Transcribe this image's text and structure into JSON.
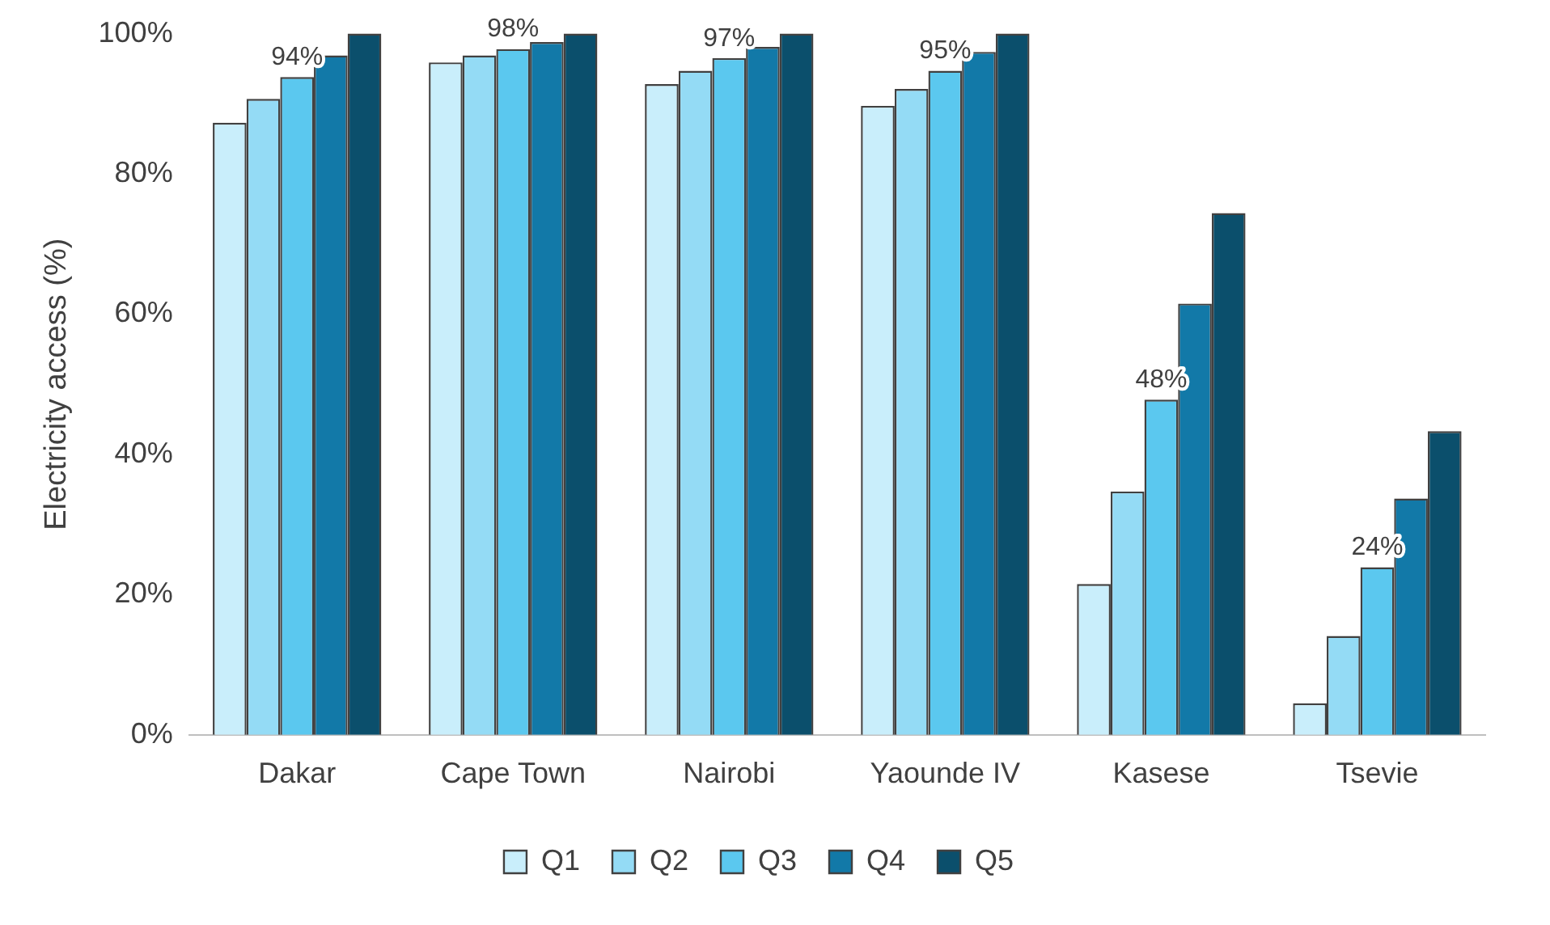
{
  "chart_data": {
    "type": "bar",
    "ylabel": "Electricity access (%)",
    "categories": [
      "Dakar",
      "Cape Town",
      "Nairobi",
      "Yaounde IV",
      "Kasese",
      "Tsevie"
    ],
    "series": [
      {
        "name": "Q1",
        "color": "#c9eefb",
        "values": [
          87.3,
          95.9,
          92.8,
          89.7,
          21.5,
          4.5
        ]
      },
      {
        "name": "Q2",
        "color": "#94dbf5",
        "values": [
          90.7,
          96.9,
          94.7,
          92.1,
          34.7,
          14.1
        ]
      },
      {
        "name": "Q3",
        "color": "#5bc8ef",
        "values": [
          93.8,
          97.8,
          96.5,
          94.7,
          47.8,
          23.9
        ],
        "value_labels": [
          "94%",
          "98%",
          "97%",
          "95%",
          "48%",
          "24%"
        ]
      },
      {
        "name": "Q4",
        "color": "#1279a8",
        "values": [
          96.9,
          98.8,
          98.1,
          97.4,
          61.5,
          33.7
        ]
      },
      {
        "name": "Q5",
        "color": "#0b4f6c",
        "values": [
          100,
          100,
          100,
          100,
          74.4,
          43.3
        ]
      }
    ],
    "ylim": [
      0,
      100
    ],
    "yticks": [
      {
        "value": 0,
        "label": "0%"
      },
      {
        "value": 20,
        "label": "20%"
      },
      {
        "value": 40,
        "label": "40%"
      },
      {
        "value": 60,
        "label": "60%"
      },
      {
        "value": 80,
        "label": "80%"
      },
      {
        "value": 100,
        "label": "100%"
      }
    ],
    "grid": false,
    "legend": "bottom"
  }
}
